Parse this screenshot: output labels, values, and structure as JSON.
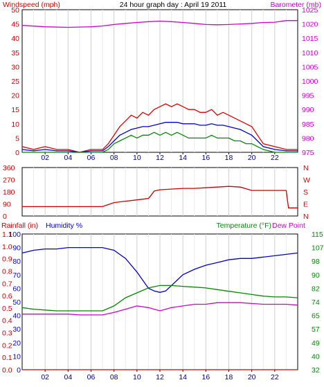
{
  "chart_data": [
    {
      "type": "line",
      "title": "24 hour graph day : April 19 2011",
      "left_axis_label": "Windspeed (mph)",
      "right_axis_label": "Barometer (mb)",
      "left_ylim": [
        0,
        50
      ],
      "left_ticks": [
        "0",
        "5",
        "10",
        "15",
        "20",
        "25",
        "30",
        "35",
        "40",
        "45",
        "50"
      ],
      "right_ylim": [
        975,
        1025
      ],
      "right_ticks": [
        "975",
        "980",
        "985",
        "990",
        "995",
        "1000",
        "1005",
        "1010",
        "1015",
        "1020",
        "1025"
      ],
      "x_ticks": [
        "02",
        "04",
        "06",
        "08",
        "10",
        "12",
        "14",
        "16",
        "18",
        "20",
        "22"
      ],
      "xlim": [
        0,
        24
      ],
      "grid": true,
      "series": [
        {
          "color": "#dd0000",
          "axis": "left",
          "x": [
            0,
            1,
            2,
            3,
            4,
            5,
            6,
            7,
            7.5,
            8,
            8.5,
            9,
            9.5,
            10,
            10.5,
            11,
            11.5,
            12,
            12.5,
            13,
            13.5,
            14,
            14.5,
            15,
            15.5,
            16,
            16.5,
            17,
            17.5,
            18,
            18.5,
            19,
            19.5,
            20,
            20.5,
            21,
            22,
            23,
            24
          ],
          "values": [
            2,
            1,
            2,
            1,
            1,
            0,
            1,
            1,
            3,
            6,
            9,
            11,
            13,
            12,
            14,
            13,
            15,
            16,
            17,
            16,
            17,
            16,
            15,
            15,
            14,
            14,
            15,
            13,
            14,
            13,
            12,
            11,
            10,
            9,
            6,
            3,
            2,
            1,
            1
          ]
        },
        {
          "color": "#0000cc",
          "axis": "left",
          "x": [
            0,
            1,
            2,
            3,
            4,
            5,
            6,
            7,
            7.5,
            8,
            8.5,
            9,
            9.5,
            10,
            10.5,
            11,
            11.5,
            12,
            12.5,
            13,
            13.5,
            14,
            14.5,
            15,
            15.5,
            16,
            16.5,
            17,
            17.5,
            18,
            18.5,
            19,
            19.5,
            20,
            20.5,
            21,
            22,
            23,
            24
          ],
          "values": [
            1,
            0.5,
            1,
            0.5,
            0.5,
            0,
            0.5,
            0.5,
            2,
            4,
            6,
            7,
            8,
            8.5,
            9,
            9,
            9.5,
            10,
            10.5,
            10.5,
            10.5,
            10,
            10,
            10,
            9.5,
            9.5,
            10,
            9.5,
            9.5,
            9,
            8.5,
            8,
            7,
            6,
            4,
            2,
            1,
            0.5,
            0.5
          ]
        },
        {
          "color": "#008800",
          "axis": "left",
          "x": [
            0,
            1,
            2,
            3,
            4,
            5,
            6,
            7,
            7.5,
            8,
            8.5,
            9,
            9.5,
            10,
            10.5,
            11,
            11.5,
            12,
            12.5,
            13,
            13.5,
            14,
            14.5,
            15,
            15.5,
            16,
            16.5,
            17,
            17.5,
            18,
            18.5,
            19,
            19.5,
            20,
            20.5,
            21,
            22,
            23,
            24
          ],
          "values": [
            0,
            0,
            0,
            0,
            0,
            0,
            0,
            0,
            1,
            3,
            4,
            5,
            6,
            5,
            6,
            6,
            7,
            6,
            7,
            6,
            7,
            6,
            5,
            5,
            5,
            5,
            6,
            5,
            5,
            5,
            4,
            4,
            3,
            3,
            2,
            1,
            0,
            0,
            0
          ]
        },
        {
          "color": "#cc00cc",
          "axis": "right",
          "x": [
            0,
            2,
            4,
            6,
            7,
            8,
            9,
            10,
            11,
            12,
            13,
            14,
            15,
            16,
            17,
            18,
            19,
            20,
            21,
            22,
            23,
            24
          ],
          "values": [
            1019.5,
            1019,
            1018.8,
            1019,
            1019.3,
            1019.8,
            1020.2,
            1020.5,
            1020.8,
            1021,
            1020.8,
            1020.5,
            1020.2,
            1019.8,
            1019.7,
            1019.8,
            1020,
            1020.2,
            1020.5,
            1020.6,
            1021.2,
            1021.2
          ]
        }
      ]
    },
    {
      "type": "line",
      "right_axis_label": [
        "N",
        "W",
        "S",
        "E",
        "N"
      ],
      "left_ylim": [
        0,
        360
      ],
      "left_ticks": [
        "0",
        "90",
        "180",
        "270",
        "360"
      ],
      "xlim": [
        0,
        24
      ],
      "grid": true,
      "series": [
        {
          "color": "#cc0000",
          "axis": "left",
          "x": [
            0,
            2,
            4,
            6,
            7,
            7.5,
            8,
            9,
            10,
            11,
            11.2,
            11.5,
            12,
            13,
            14,
            15,
            16,
            17,
            18,
            19,
            20,
            21,
            22,
            23,
            23.2,
            24
          ],
          "values": [
            70,
            70,
            70,
            70,
            70,
            85,
            100,
            110,
            120,
            130,
            150,
            185,
            195,
            200,
            205,
            205,
            210,
            215,
            220,
            215,
            190,
            190,
            190,
            190,
            60,
            60
          ]
        }
      ]
    },
    {
      "type": "line",
      "legend": [
        "Rainfall (in)",
        "Humidity %",
        "Temperature (°F)",
        "Dew Point"
      ],
      "left_ylim": [
        0,
        100
      ],
      "left_ticks": [
        "0",
        "10",
        "20",
        "30",
        "40",
        "50",
        "60",
        "70",
        "80",
        "90",
        "100"
      ],
      "rain_ticks": [
        "0.0",
        "0.1",
        "0.2",
        "0.3",
        "0.4",
        "0.5",
        "0.6",
        "0.7",
        "0.8",
        "0.9",
        "1.0",
        "1.1"
      ],
      "right_ylim": [
        32,
        115
      ],
      "right_ticks": [
        "32",
        "40",
        "49",
        "57",
        "65",
        "74",
        "82",
        "90",
        "98",
        "107",
        "115"
      ],
      "x_ticks": [
        "02",
        "04",
        "06",
        "08",
        "10",
        "12",
        "14",
        "16",
        "18",
        "20",
        "22"
      ],
      "xlim": [
        0,
        24
      ],
      "grid": true,
      "series": [
        {
          "color": "#0000cc",
          "axis": "left",
          "x": [
            0,
            0.5,
            1,
            2,
            3,
            4,
            5,
            6,
            7,
            7.5,
            8,
            9,
            10,
            10.5,
            11,
            11.5,
            12,
            12.5,
            13,
            14,
            15,
            16,
            17,
            18,
            19,
            20,
            21,
            22,
            23,
            24
          ],
          "values": [
            86,
            87,
            88,
            89,
            89,
            90,
            90,
            90,
            90,
            89,
            88,
            82,
            72,
            66,
            60,
            58,
            57,
            58,
            62,
            70,
            74,
            77,
            79,
            81,
            82,
            82,
            83,
            84,
            85,
            86
          ]
        },
        {
          "color": "#008800",
          "axis": "right",
          "x": [
            0,
            1,
            2,
            3,
            4,
            5,
            6,
            7,
            8,
            9,
            10,
            11,
            12,
            13,
            14,
            15,
            16,
            17,
            18,
            19,
            20,
            21,
            22,
            23,
            24
          ],
          "values": [
            70,
            69,
            68.5,
            68,
            68,
            68,
            68,
            68,
            71,
            76,
            79,
            82,
            83.5,
            83.5,
            83,
            82.5,
            82,
            81,
            80,
            79,
            78,
            77,
            76.5,
            76.5,
            76
          ]
        },
        {
          "color": "#cc00cc",
          "axis": "right",
          "x": [
            0,
            1,
            2,
            3,
            4,
            5,
            6,
            7,
            8,
            9,
            10,
            11,
            12,
            13,
            14,
            15,
            16,
            17,
            18,
            19,
            20,
            21,
            22,
            23,
            24
          ],
          "values": [
            66,
            66,
            66,
            66,
            66,
            65.5,
            65.5,
            65.5,
            67,
            69,
            71,
            70,
            68,
            70,
            71,
            72,
            72,
            73,
            73,
            73,
            72.5,
            72,
            72,
            72,
            71.5
          ]
        },
        {
          "color": "#cc0000",
          "axis": "rain",
          "x": [
            0,
            24
          ],
          "values": [
            0,
            0
          ]
        }
      ]
    }
  ]
}
